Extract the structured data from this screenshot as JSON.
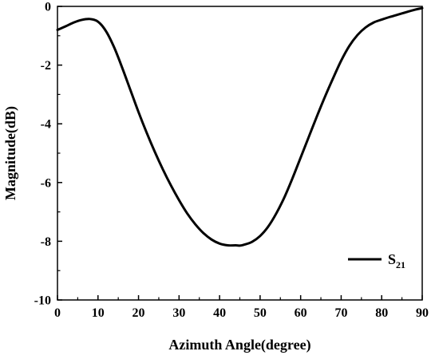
{
  "chart_data": {
    "type": "line",
    "xlabel": "Azimuth Angle(degree)",
    "ylabel": "Magnitude(dB)",
    "xlim": [
      0,
      90
    ],
    "ylim": [
      -10,
      0
    ],
    "xticks": [
      0,
      10,
      20,
      30,
      40,
      50,
      60,
      70,
      80,
      90
    ],
    "yticks": [
      0,
      -2,
      -4,
      -6,
      -8,
      -10
    ],
    "x_minor_step": 5,
    "y_minor_step": 1,
    "grid": false,
    "legend_position": "bottom-right",
    "legend_main": "S",
    "legend_sub": "21",
    "series": [
      {
        "name": "S21",
        "color": "#000000",
        "x": [
          0,
          2,
          4,
          6,
          8,
          10,
          12,
          14,
          16,
          18,
          20,
          22,
          24,
          26,
          28,
          30,
          32,
          34,
          36,
          38,
          40,
          42,
          44,
          45,
          46,
          48,
          50,
          52,
          54,
          56,
          58,
          60,
          62,
          64,
          66,
          68,
          70,
          72,
          74,
          76,
          78,
          80,
          82,
          84,
          86,
          88,
          90
        ],
        "y": [
          -0.8,
          -0.68,
          -0.55,
          -0.46,
          -0.43,
          -0.52,
          -0.85,
          -1.4,
          -2.1,
          -2.85,
          -3.6,
          -4.3,
          -4.95,
          -5.55,
          -6.1,
          -6.6,
          -7.05,
          -7.42,
          -7.72,
          -7.94,
          -8.08,
          -8.14,
          -8.14,
          -8.15,
          -8.12,
          -8.02,
          -7.82,
          -7.5,
          -7.05,
          -6.5,
          -5.85,
          -5.15,
          -4.45,
          -3.75,
          -3.08,
          -2.45,
          -1.85,
          -1.35,
          -0.98,
          -0.72,
          -0.55,
          -0.45,
          -0.36,
          -0.28,
          -0.2,
          -0.12,
          -0.06
        ]
      }
    ]
  }
}
